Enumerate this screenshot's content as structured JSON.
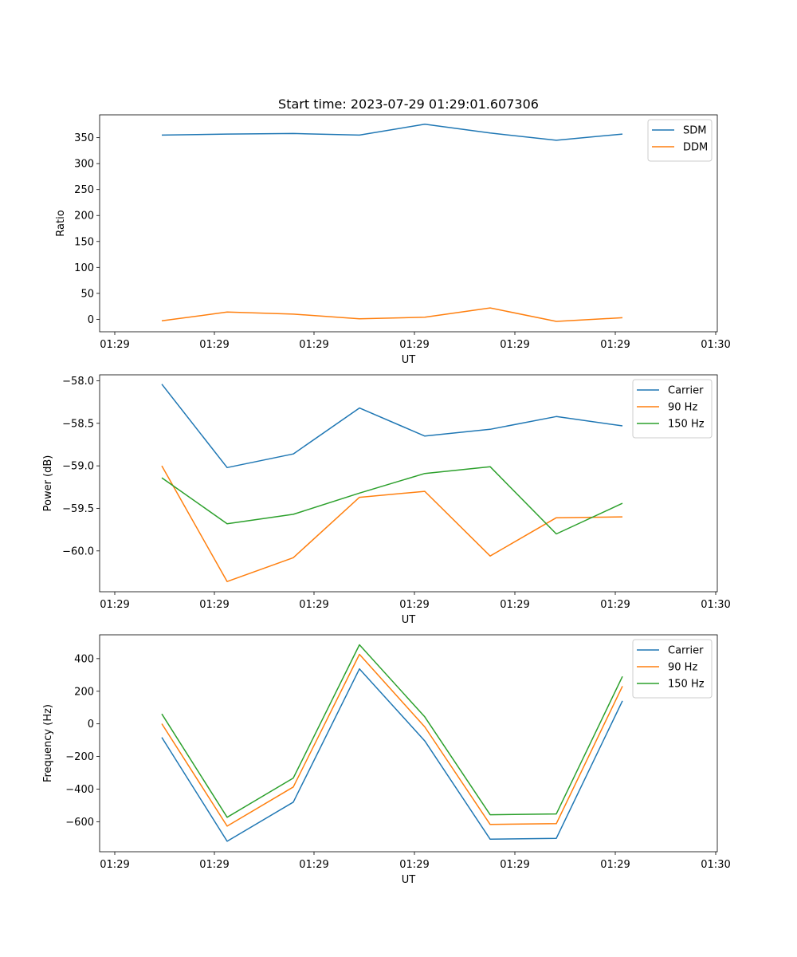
{
  "figure": {
    "title": "Start time: 2023-07-29 01:29:01.607306"
  },
  "chart_data": [
    {
      "type": "line",
      "title": "Start time: 2023-07-29 01:29:01.607306",
      "xlabel": "UT",
      "ylabel": "Ratio",
      "x_tick_labels": [
        "01:29",
        "01:29",
        "01:29",
        "01:29",
        "01:29",
        "01:29",
        "01:30"
      ],
      "y_ticks": [
        0,
        50,
        100,
        150,
        200,
        250,
        300,
        350
      ],
      "y_tick_labels": [
        "0",
        "50",
        "100",
        "150",
        "200",
        "250",
        "300",
        "350"
      ],
      "ylim": [
        -24,
        394
      ],
      "legend_position": "top-right",
      "colors": {
        "SDM": "#1f77b4",
        "DDM": "#ff7f0e"
      },
      "series": [
        {
          "name": "SDM",
          "values": [
            355,
            357,
            358,
            355,
            376,
            359,
            345,
            357
          ]
        },
        {
          "name": "DDM",
          "values": [
            -3,
            14,
            10,
            1,
            4,
            22,
            -4,
            3
          ]
        }
      ]
    },
    {
      "type": "line",
      "title": "",
      "xlabel": "UT",
      "ylabel": "Power (dB)",
      "x_tick_labels": [
        "01:29",
        "01:29",
        "01:29",
        "01:29",
        "01:29",
        "01:29",
        "01:30"
      ],
      "y_ticks": [
        -60.0,
        -59.5,
        -59.0,
        -58.5,
        -58.0
      ],
      "y_tick_labels": [
        "−60.0",
        "−59.5",
        "−59.0",
        "−58.5",
        "−58.0"
      ],
      "ylim": [
        -60.48,
        -57.93
      ],
      "legend_position": "top-right",
      "colors": {
        "Carrier": "#1f77b4",
        "90 Hz": "#ff7f0e",
        "150 Hz": "#2ca02c"
      },
      "series": [
        {
          "name": "Carrier",
          "values": [
            -58.04,
            -59.02,
            -58.86,
            -58.32,
            -58.65,
            -58.57,
            -58.42,
            -58.53
          ]
        },
        {
          "name": "90 Hz",
          "values": [
            -59.0,
            -60.36,
            -60.08,
            -59.37,
            -59.3,
            -60.06,
            -59.61,
            -59.6
          ]
        },
        {
          "name": "150 Hz",
          "values": [
            -59.14,
            -59.68,
            -59.57,
            -59.32,
            -59.09,
            -59.01,
            -59.8,
            -59.44
          ]
        }
      ]
    },
    {
      "type": "line",
      "title": "",
      "xlabel": "UT",
      "ylabel": "Frequency (Hz)",
      "x_tick_labels": [
        "01:29",
        "01:29",
        "01:29",
        "01:29",
        "01:29",
        "01:29",
        "01:30"
      ],
      "y_ticks": [
        -600,
        -400,
        -200,
        0,
        200,
        400
      ],
      "y_tick_labels": [
        "−600",
        "−400",
        "−200",
        "0",
        "200",
        "400"
      ],
      "ylim": [
        -784,
        546
      ],
      "legend_position": "top-right",
      "colors": {
        "Carrier": "#1f77b4",
        "90 Hz": "#ff7f0e",
        "150 Hz": "#2ca02c"
      },
      "series": [
        {
          "name": "Carrier",
          "values": [
            -83,
            -720,
            -480,
            337,
            -105,
            -707,
            -702,
            141
          ]
        },
        {
          "name": "90 Hz",
          "values": [
            1,
            -627,
            -387,
            426,
            -19,
            -617,
            -612,
            231
          ]
        },
        {
          "name": "150 Hz",
          "values": [
            61,
            -573,
            -332,
            485,
            43,
            -557,
            -552,
            291
          ]
        }
      ]
    }
  ]
}
